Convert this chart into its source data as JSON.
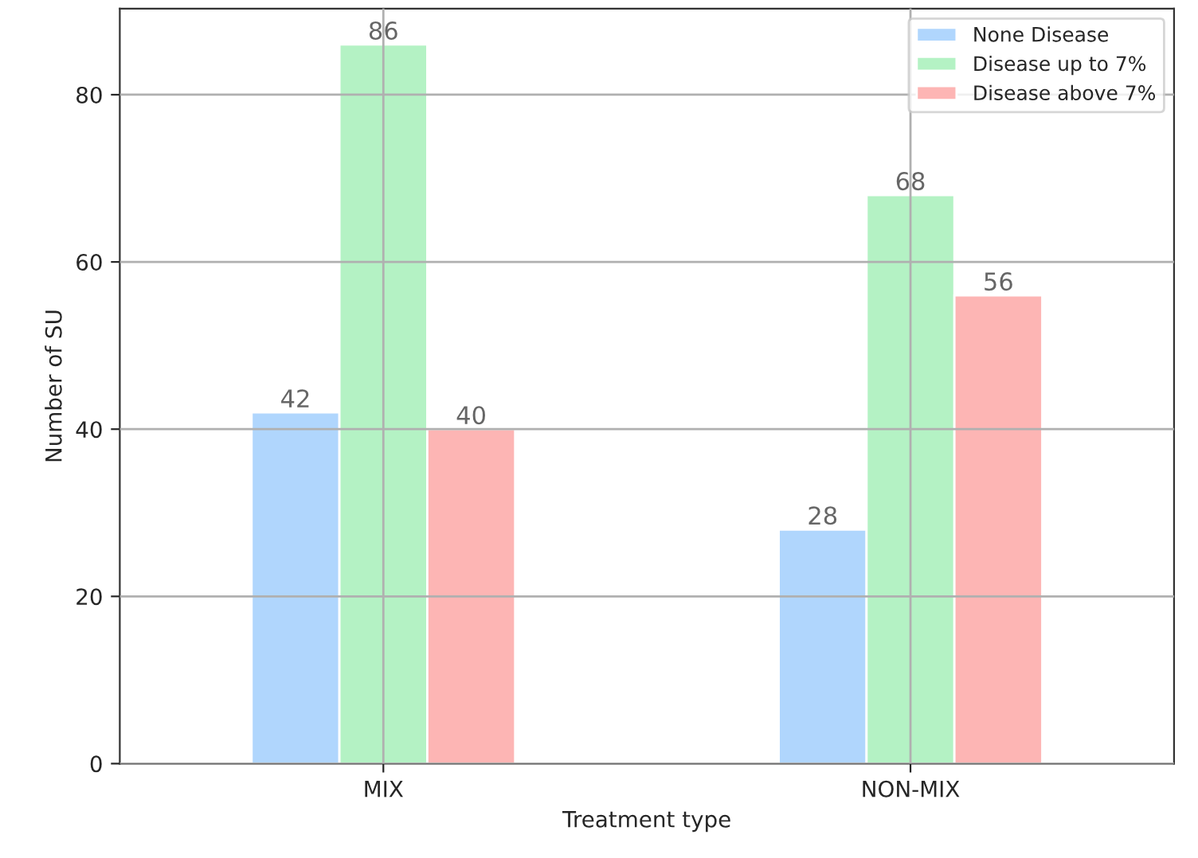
{
  "chart_data": {
    "type": "bar",
    "xlabel": "Treatment type",
    "ylabel": "Number of SU",
    "categories": [
      "MIX",
      "NON-MIX"
    ],
    "series": [
      {
        "name": "None Disease",
        "color": "#b0d6fd",
        "values": [
          42,
          28
        ]
      },
      {
        "name": "Disease up to 7%",
        "color": "#b4f2c4",
        "values": [
          86,
          68
        ]
      },
      {
        "name": "Disease above 7%",
        "color": "#fdb5b4",
        "values": [
          40,
          56
        ]
      }
    ],
    "ylim": [
      0,
      90.3
    ],
    "yticks": [
      0,
      20,
      40,
      60,
      80
    ],
    "grid": true,
    "legend": "top right",
    "data_labels": true
  }
}
